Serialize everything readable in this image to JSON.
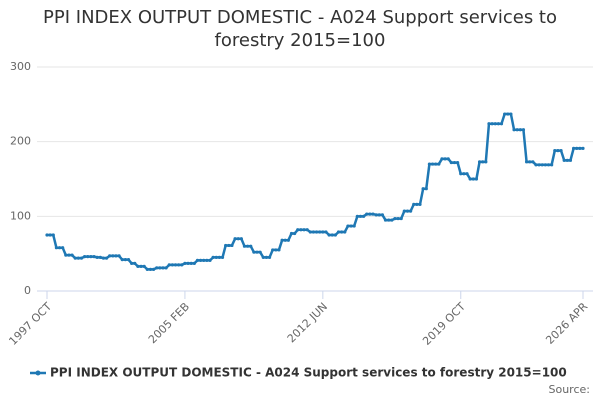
{
  "chart_data": {
    "type": "line",
    "title": "PPI INDEX OUTPUT DOMESTIC - A024 Support services to forestry 2015=100",
    "source": "Source:",
    "categories": [
      "1997 OCT",
      null,
      null,
      null,
      null,
      null,
      null,
      null,
      null,
      null,
      null,
      null,
      null,
      null,
      null,
      null,
      null,
      null,
      null,
      null,
      null,
      null,
      null,
      null,
      null,
      null,
      null,
      null,
      null,
      null,
      null,
      null,
      null,
      null,
      null,
      null,
      null,
      null,
      null,
      null,
      null,
      null,
      null,
      null,
      "2005 FEB",
      null,
      null,
      null,
      null,
      null,
      null,
      null,
      null,
      null,
      null,
      null,
      null,
      null,
      null,
      null,
      null,
      null,
      null,
      null,
      null,
      null,
      null,
      null,
      null,
      null,
      null,
      null,
      null,
      null,
      null,
      null,
      null,
      null,
      null,
      null,
      null,
      null,
      null,
      null,
      null,
      null,
      null,
      null,
      "2012 JUN",
      null,
      null,
      null,
      null,
      null,
      null,
      null,
      null,
      null,
      null,
      null,
      null,
      null,
      null,
      null,
      null,
      null,
      null,
      null,
      null,
      null,
      null,
      null,
      null,
      null,
      null,
      null,
      null,
      null,
      null,
      null,
      null,
      null,
      null,
      null,
      null,
      null,
      null,
      null,
      null,
      null,
      null,
      null,
      "2019 OCT",
      null,
      null,
      null,
      null,
      null,
      null,
      null,
      null,
      null,
      null,
      null,
      null,
      null,
      null,
      null,
      null,
      null,
      null,
      null,
      null,
      null,
      null,
      null,
      null,
      null,
      null,
      null,
      null,
      null,
      null,
      null,
      null,
      null,
      null,
      null,
      null,
      null,
      null,
      "2026 APR"
    ],
    "series": [
      {
        "name": "PPI INDEX OUTPUT DOMESTIC - A024 Support services to forestry 2015=100",
        "color": "#1f78b4",
        "values": [
          75,
          75,
          75,
          58,
          58,
          58,
          48,
          48,
          48,
          44,
          44,
          44,
          46,
          46,
          46,
          46,
          45,
          45,
          44,
          44,
          47,
          47,
          47,
          47,
          42,
          42,
          42,
          37,
          37,
          33,
          33,
          33,
          29,
          29,
          29,
          31,
          31,
          31,
          31,
          35,
          35,
          35,
          35,
          35,
          37,
          37,
          37,
          37,
          41,
          41,
          41,
          41,
          41,
          45,
          45,
          45,
          45,
          61,
          61,
          61,
          70,
          70,
          70,
          60,
          60,
          60,
          52,
          52,
          52,
          45,
          45,
          45,
          55,
          55,
          55,
          68,
          68,
          68,
          77,
          77,
          82,
          82,
          82,
          82,
          79,
          79,
          79,
          79,
          79,
          79,
          75,
          75,
          75,
          79,
          79,
          79,
          87,
          87,
          87,
          100,
          100,
          100,
          103,
          103,
          103,
          102,
          102,
          102,
          95,
          95,
          95,
          97,
          97,
          97,
          107,
          107,
          107,
          116,
          116,
          116,
          137,
          137,
          170,
          170,
          170,
          170,
          177,
          177,
          177,
          172,
          172,
          172,
          157,
          157,
          157,
          150,
          150,
          150,
          173,
          173,
          173,
          224,
          224,
          224,
          224,
          224,
          237,
          237,
          237,
          216,
          216,
          216,
          216,
          173,
          173,
          173,
          169,
          169,
          169,
          169,
          169,
          169,
          188,
          188,
          188,
          175,
          175,
          175,
          191,
          191,
          191,
          191
        ]
      }
    ],
    "ylim": [
      0,
      300
    ],
    "yticks": [
      0,
      100,
      200,
      300
    ],
    "grid": true
  }
}
